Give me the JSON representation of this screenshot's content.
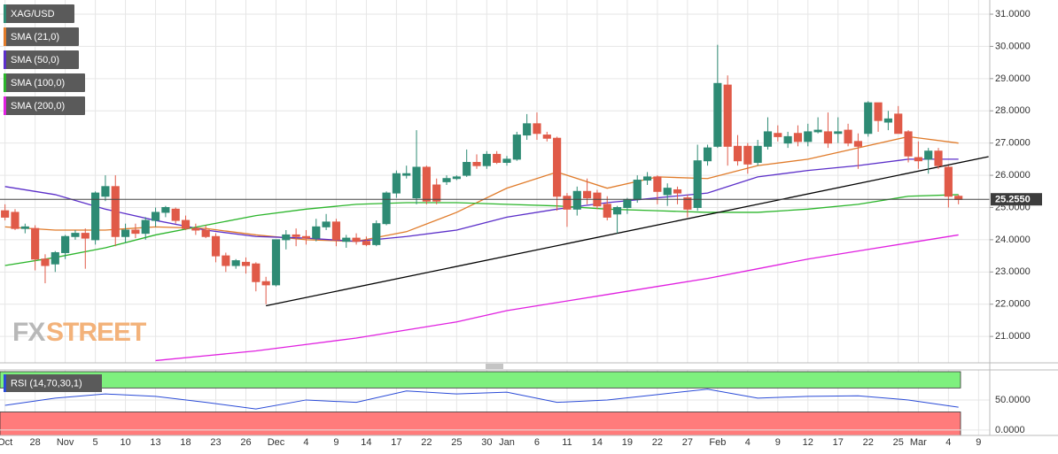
{
  "chart_data": {
    "type": "candlestick",
    "symbol": "XAG/USD",
    "up_color": "#2e8b74",
    "down_color": "#e05a48",
    "categories": [
      "Oct",
      null,
      null,
      "28",
      null,
      null,
      "Nov",
      null,
      null,
      "5",
      null,
      null,
      "10",
      null,
      null,
      "13",
      null,
      null,
      "18",
      null,
      null,
      "23",
      null,
      null,
      "26",
      null,
      null,
      "Dec",
      null,
      null,
      "4",
      null,
      null,
      "9",
      null,
      null,
      "14",
      null,
      null,
      "17",
      null,
      null,
      "22",
      null,
      null,
      "25",
      null,
      null,
      "30",
      null,
      "Jan",
      null,
      null,
      "6",
      null,
      null,
      "11",
      null,
      null,
      "14",
      null,
      null,
      "19",
      null,
      null,
      "22",
      null,
      null,
      "27",
      null,
      null,
      "Feb",
      null,
      null,
      "4",
      null,
      null,
      "9",
      null,
      null,
      "12",
      null,
      null,
      "17",
      null,
      null,
      "22",
      null,
      null,
      "25",
      null,
      "Mar",
      null,
      null,
      "4",
      null,
      null,
      "9"
    ],
    "open": [
      24.9,
      24.85,
      24.35,
      24.35,
      23.4,
      23.25,
      23.6,
      24.1,
      24.2,
      24.0,
      25.35,
      25.65,
      24.1,
      24.3,
      24.2,
      24.6,
      24.85,
      24.95,
      24.6,
      24.35,
      24.3,
      24.1,
      23.5,
      23.2,
      23.3,
      23.25,
      22.7,
      22.6,
      24.0,
      24.15,
      24.1,
      24.05,
      24.4,
      24.55,
      23.95,
      24.05,
      23.95,
      23.85,
      24.5,
      25.45,
      26.0,
      25.3,
      26.25,
      25.7,
      25.8,
      25.9,
      26.0,
      26.4,
      26.3,
      26.65,
      26.4,
      26.5,
      27.25,
      27.6,
      27.25,
      27.15,
      25.35,
      24.95,
      25.5,
      25.45,
      25.1,
      24.8,
      25.0,
      25.25,
      25.85,
      25.95,
      25.4,
      25.55,
      25.3,
      25.0,
      26.45,
      26.9,
      28.8,
      26.9,
      26.9,
      26.4,
      26.9,
      27.3,
      27.0,
      27.3,
      27.05,
      27.35,
      27.35,
      27.3,
      27.4,
      27.05,
      27.3,
      28.25,
      27.65,
      27.9,
      27.35,
      26.55,
      26.5,
      26.75,
      26.25,
      25.35,
      null,
      null
    ],
    "high": [
      25.1,
      24.95,
      24.5,
      24.45,
      23.55,
      23.65,
      24.15,
      24.3,
      24.35,
      25.5,
      26.0,
      26.0,
      24.5,
      24.5,
      24.7,
      25.0,
      25.05,
      25.0,
      24.75,
      24.5,
      24.45,
      24.2,
      23.6,
      23.4,
      23.45,
      23.3,
      22.85,
      24.0,
      24.3,
      24.35,
      24.3,
      24.65,
      24.8,
      24.65,
      24.15,
      24.2,
      24.1,
      24.6,
      25.5,
      26.15,
      26.3,
      27.4,
      26.3,
      25.9,
      26.0,
      26.0,
      26.8,
      26.65,
      26.75,
      26.75,
      26.6,
      27.35,
      27.9,
      27.95,
      27.35,
      27.2,
      25.45,
      25.65,
      25.9,
      25.55,
      25.35,
      25.05,
      25.3,
      26.0,
      26.1,
      26.0,
      25.75,
      25.65,
      25.4,
      26.95,
      26.95,
      30.05,
      29.1,
      27.25,
      27.0,
      27.1,
      27.8,
      27.55,
      27.35,
      27.55,
      27.6,
      27.8,
      27.95,
      27.8,
      27.6,
      27.3,
      28.3,
      28.25,
      28.0,
      28.15,
      27.4,
      27.05,
      26.85,
      26.85,
      26.3,
      25.4,
      null,
      null
    ],
    "low": [
      24.6,
      24.3,
      24.2,
      23.05,
      22.65,
      23.0,
      23.4,
      24.0,
      23.1,
      23.85,
      25.2,
      23.8,
      23.9,
      24.05,
      24.0,
      24.4,
      24.7,
      24.5,
      24.3,
      24.15,
      24.05,
      23.3,
      23.0,
      23.1,
      22.95,
      22.4,
      22.0,
      22.55,
      23.7,
      23.8,
      23.85,
      23.95,
      24.3,
      23.8,
      23.75,
      23.85,
      23.8,
      23.8,
      24.45,
      25.3,
      25.9,
      25.1,
      25.1,
      25.1,
      25.7,
      25.85,
      25.95,
      26.2,
      26.2,
      26.35,
      26.3,
      26.45,
      27.1,
      27.1,
      27.05,
      24.9,
      24.4,
      24.75,
      25.1,
      24.95,
      24.6,
      24.2,
      24.8,
      25.15,
      25.7,
      25.1,
      25.05,
      25.1,
      24.7,
      24.9,
      26.3,
      26.85,
      26.3,
      26.3,
      26.05,
      26.3,
      26.8,
      27.05,
      26.85,
      26.9,
      26.9,
      27.3,
      26.85,
      27.0,
      26.9,
      26.2,
      27.2,
      27.35,
      27.4,
      27.3,
      26.4,
      26.2,
      26.05,
      26.2,
      25.0,
      25.1,
      null,
      null
    ],
    "close": [
      24.7,
      24.35,
      24.4,
      23.4,
      23.2,
      23.6,
      24.1,
      24.2,
      24.05,
      25.45,
      25.65,
      24.1,
      24.3,
      24.2,
      24.6,
      24.85,
      25.0,
      24.6,
      24.35,
      24.3,
      24.1,
      23.5,
      23.2,
      23.35,
      23.2,
      22.7,
      22.6,
      24.0,
      24.15,
      24.1,
      24.05,
      24.4,
      24.55,
      24.0,
      24.05,
      23.95,
      23.85,
      24.5,
      25.45,
      26.05,
      26.05,
      26.25,
      25.2,
      25.2,
      25.9,
      25.95,
      26.4,
      26.3,
      26.65,
      26.4,
      26.5,
      27.25,
      27.6,
      27.3,
      27.15,
      25.35,
      24.95,
      25.5,
      25.3,
      25.05,
      24.7,
      25.0,
      25.25,
      25.85,
      25.95,
      25.5,
      25.6,
      25.45,
      24.95,
      26.45,
      26.85,
      28.85,
      26.9,
      26.45,
      26.35,
      26.9,
      27.35,
      27.2,
      27.2,
      27.05,
      27.35,
      27.4,
      27.0,
      27.35,
      27.0,
      26.9,
      28.25,
      27.7,
      27.75,
      27.3,
      26.6,
      26.45,
      26.75,
      26.3,
      25.35,
      25.25,
      null,
      null
    ],
    "ylim": [
      20.18,
      31.44
    ],
    "yticks": [
      {
        "value": 21,
        "label": "21.0000"
      },
      {
        "value": 22,
        "label": "22.0000"
      },
      {
        "value": 23,
        "label": "23.0000"
      },
      {
        "value": 24,
        "label": "24.0000"
      },
      {
        "value": 25,
        "label": "25.0000"
      },
      {
        "value": 26,
        "label": "26.0000"
      },
      {
        "value": 27,
        "label": "27.0000"
      },
      {
        "value": 28,
        "label": "28.0000"
      },
      {
        "value": 29,
        "label": "29.0000"
      },
      {
        "value": 30,
        "label": "30.0000"
      },
      {
        "value": 31,
        "label": "31.0000"
      }
    ],
    "grid": true,
    "last_price": {
      "value": 25.255,
      "label": "25.2550"
    },
    "sma": [
      {
        "name": "SMA (21,0)",
        "color": "#e07b2a",
        "x": [
          0,
          5,
          10,
          15,
          20,
          25,
          30,
          35,
          40,
          45,
          50,
          55,
          60,
          65,
          70,
          75,
          80,
          85,
          90,
          95
        ],
        "values": [
          24.4,
          24.3,
          24.3,
          24.4,
          24.35,
          24.15,
          24.0,
          23.95,
          24.25,
          24.85,
          25.6,
          26.1,
          25.6,
          25.95,
          25.9,
          26.3,
          26.5,
          26.85,
          27.2,
          27.0
        ]
      },
      {
        "name": "SMA (50,0)",
        "color": "#5b2fc9",
        "x": [
          0,
          5,
          10,
          15,
          20,
          25,
          30,
          35,
          40,
          45,
          50,
          55,
          60,
          65,
          70,
          75,
          80,
          85,
          90,
          95
        ],
        "values": [
          25.65,
          25.4,
          24.95,
          24.6,
          24.3,
          24.1,
          24.05,
          23.95,
          24.1,
          24.3,
          24.7,
          24.95,
          25.15,
          25.3,
          25.45,
          25.95,
          26.15,
          26.3,
          26.5,
          26.5
        ]
      },
      {
        "name": "SMA (100,0)",
        "color": "#2bb52b",
        "x": [
          0,
          5,
          10,
          15,
          20,
          25,
          30,
          35,
          40,
          45,
          50,
          55,
          60,
          65,
          70,
          75,
          80,
          85,
          90,
          95
        ],
        "values": [
          23.2,
          23.45,
          23.75,
          24.15,
          24.45,
          24.75,
          24.95,
          25.1,
          25.15,
          25.15,
          25.1,
          25.05,
          24.95,
          24.9,
          24.85,
          24.85,
          24.95,
          25.1,
          25.35,
          25.4
        ]
      },
      {
        "name": "SMA (200,0)",
        "color": "#e020e0",
        "x": [
          0,
          5,
          10,
          15,
          20,
          25,
          30,
          35,
          40,
          45,
          50,
          55,
          60,
          65,
          70,
          75,
          80,
          85,
          90,
          95
        ],
        "values": [
          null,
          null,
          null,
          20.25,
          20.4,
          20.55,
          20.75,
          20.95,
          21.2,
          21.45,
          21.8,
          22.05,
          22.3,
          22.55,
          22.8,
          23.1,
          23.4,
          23.65,
          23.9,
          24.15
        ]
      }
    ],
    "trendline": {
      "color": "#000000",
      "x": [
        26,
        98
      ],
      "values": [
        21.95,
        26.58
      ]
    },
    "watermark": {
      "prefix": "FX",
      "suffix": "STREET"
    },
    "rsi": {
      "name": "RSI (14,70,30,1)",
      "color": "#2a4bd7",
      "x": [
        0,
        5,
        10,
        15,
        20,
        25,
        30,
        35,
        40,
        45,
        50,
        55,
        60,
        65,
        70,
        75,
        80,
        85,
        90,
        95
      ],
      "values": [
        41,
        53,
        60,
        56,
        46,
        35,
        50,
        46,
        65,
        60,
        63,
        46,
        50,
        59,
        68,
        53,
        56,
        57,
        50,
        38
      ],
      "ylim": [
        -9,
        100
      ],
      "levels": [
        70,
        30
      ],
      "yticks": [
        {
          "value": 0,
          "label": "0.0000"
        },
        {
          "value": 50,
          "label": "50.0000"
        }
      ]
    }
  }
}
